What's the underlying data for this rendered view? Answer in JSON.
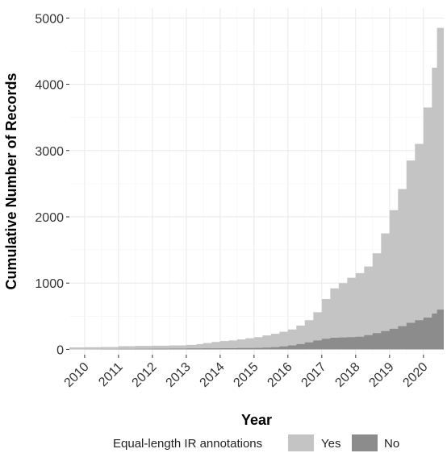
{
  "chart_data": {
    "type": "area",
    "style": "stacked cumulative step area",
    "title": "",
    "xlabel": "Year",
    "ylabel": "Cumulative Number of Records",
    "xlim": [
      2009.55,
      2020.6
    ],
    "ylim": [
      -80,
      5150
    ],
    "x_ticks": [
      "2010",
      "2011",
      "2012",
      "2013",
      "2014",
      "2015",
      "2016",
      "2017",
      "2018",
      "2019",
      "2020"
    ],
    "x_tick_values": [
      2010,
      2011,
      2012,
      2013,
      2014,
      2015,
      2016,
      2017,
      2018,
      2019,
      2020
    ],
    "y_ticks": [
      "0",
      "1000",
      "2000",
      "3000",
      "4000",
      "5000"
    ],
    "y_tick_values": [
      0,
      1000,
      2000,
      3000,
      4000,
      5000
    ],
    "grid": true,
    "legend": {
      "title": "Equal-length IR annotations",
      "position": "bottom",
      "entries": [
        "Yes",
        "No"
      ]
    },
    "series": [
      {
        "name": "Yes",
        "color": "#c4c4c4",
        "x": [
          2009.55,
          2010.0,
          2010.5,
          2011.0,
          2011.5,
          2012.0,
          2012.5,
          2013.0,
          2013.3,
          2013.5,
          2013.75,
          2014.0,
          2014.25,
          2014.5,
          2014.75,
          2015.0,
          2015.25,
          2015.5,
          2015.75,
          2016.0,
          2016.25,
          2016.5,
          2016.75,
          2017.0,
          2017.25,
          2017.5,
          2017.75,
          2018.0,
          2018.25,
          2018.5,
          2018.75,
          2019.0,
          2019.25,
          2019.5,
          2019.75,
          2020.0,
          2020.25,
          2020.4,
          2020.6
        ],
        "values": [
          30,
          32,
          36,
          48,
          52,
          56,
          60,
          68,
          80,
          95,
          112,
          125,
          135,
          150,
          168,
          185,
          210,
          235,
          265,
          300,
          360,
          440,
          560,
          760,
          920,
          1000,
          1080,
          1150,
          1250,
          1450,
          1750,
          2100,
          2420,
          2850,
          3100,
          3650,
          4250,
          4850,
          5080
        ]
      },
      {
        "name": "No",
        "color": "#8c8c8c",
        "x": [
          2009.55,
          2010.0,
          2010.5,
          2011.0,
          2011.5,
          2012.0,
          2012.5,
          2013.0,
          2013.5,
          2014.0,
          2014.5,
          2015.0,
          2015.25,
          2015.5,
          2015.75,
          2016.0,
          2016.25,
          2016.5,
          2016.75,
          2017.0,
          2017.25,
          2017.5,
          2017.75,
          2018.0,
          2018.25,
          2018.5,
          2018.75,
          2019.0,
          2019.25,
          2019.5,
          2019.75,
          2020.0,
          2020.25,
          2020.4,
          2020.6
        ],
        "values": [
          0,
          2,
          4,
          6,
          8,
          10,
          12,
          14,
          16,
          18,
          20,
          22,
          26,
          32,
          45,
          60,
          80,
          105,
          135,
          160,
          175,
          180,
          185,
          190,
          215,
          245,
          275,
          310,
          350,
          400,
          440,
          480,
          540,
          600,
          640
        ]
      }
    ]
  }
}
